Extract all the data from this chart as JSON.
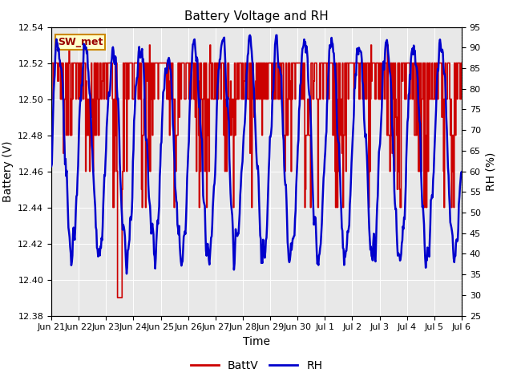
{
  "title": "Battery Voltage and RH",
  "xlabel": "Time",
  "ylabel_left": "Battery (V)",
  "ylabel_right": "RH (%)",
  "ylim_left": [
    12.38,
    12.54
  ],
  "ylim_right": [
    25,
    95
  ],
  "yticks_left": [
    12.38,
    12.4,
    12.42,
    12.44,
    12.46,
    12.48,
    12.5,
    12.52,
    12.54
  ],
  "yticks_right": [
    25,
    30,
    35,
    40,
    45,
    50,
    55,
    60,
    65,
    70,
    75,
    80,
    85,
    90,
    95
  ],
  "xtick_labels": [
    "Jun 21",
    "Jun 22",
    "Jun 23",
    "Jun 24",
    "Jun 25",
    "Jun 26",
    "Jun 27",
    "Jun 28",
    "Jun 29",
    "Jun 30",
    "Jul 1",
    "Jul 2",
    "Jul 3",
    "Jul 4",
    "Jul 5",
    "Jul 6"
  ],
  "batt_color": "#cc0000",
  "rh_color": "#0000cc",
  "background_inner": "#e8e8e8",
  "background_outer": "#ffffff",
  "legend_label_batt": "BattV",
  "legend_label_rh": "RH",
  "annotation_text": "SW_met",
  "annotation_bg": "#ffffcc",
  "annotation_border": "#cc8800",
  "title_fontsize": 11,
  "axis_label_fontsize": 10,
  "tick_fontsize": 8,
  "legend_fontsize": 10,
  "linewidth_batt": 1.2,
  "linewidth_rh": 1.8
}
